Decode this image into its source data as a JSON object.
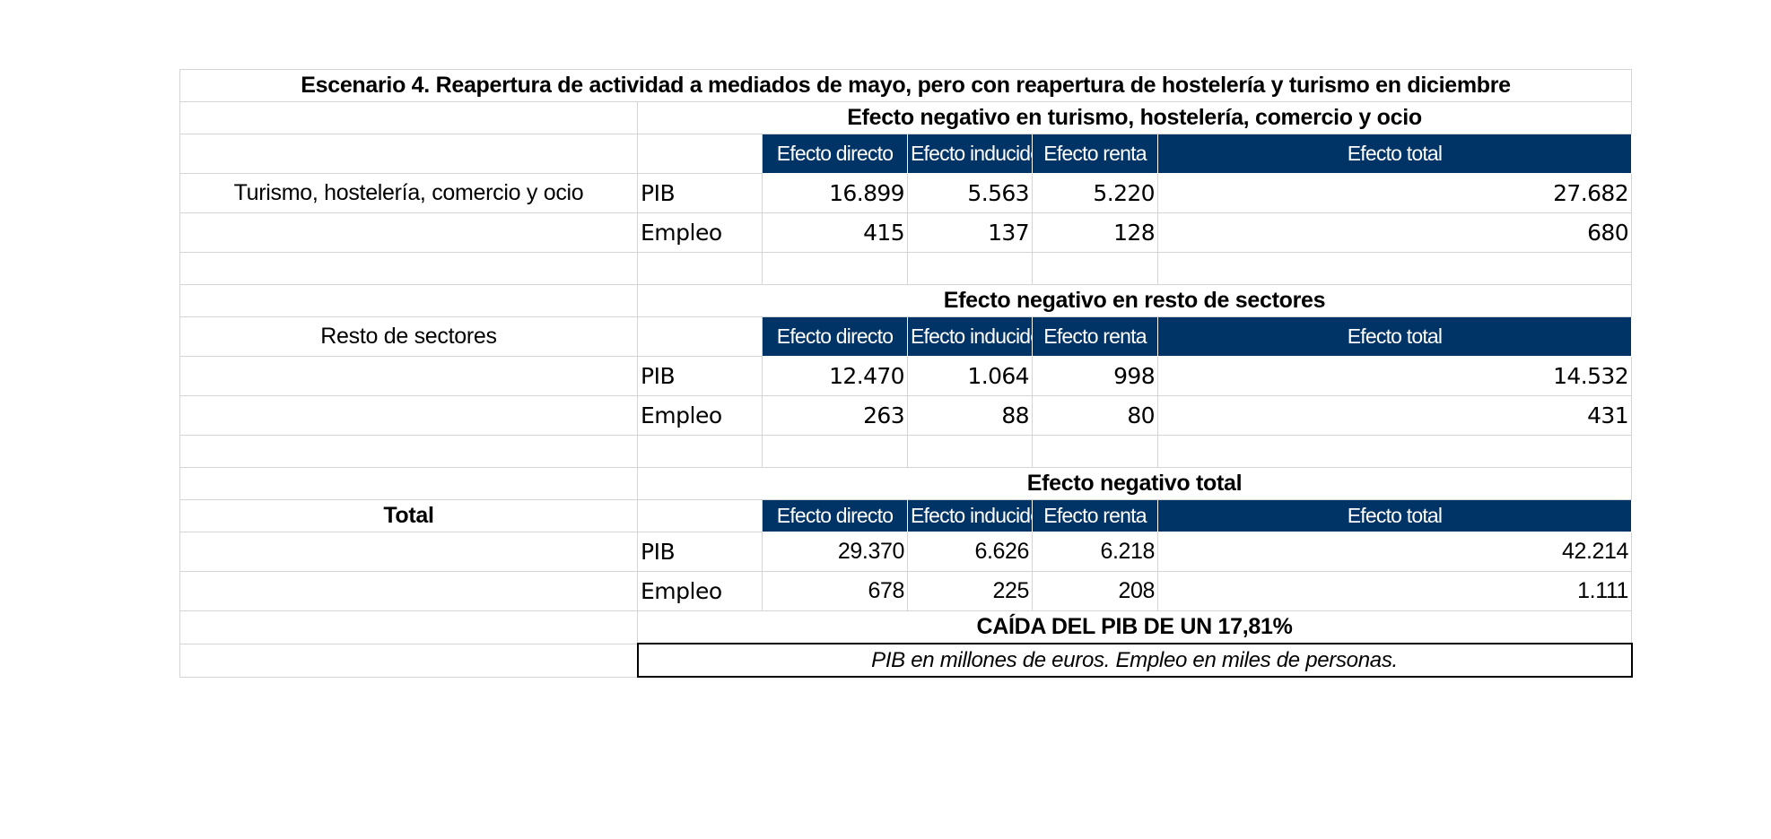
{
  "title": "Escenario 4. Reapertura de actividad a mediados de mayo, pero con reapertura de hostelería y turismo en diciembre",
  "column_headers": [
    "Efecto directo",
    "Efecto inducido",
    "Efecto renta",
    "Efecto total"
  ],
  "colors": {
    "header_bg": "#003366",
    "header_text": "#ffffff",
    "grid": "#d4d4d4"
  },
  "sections": [
    {
      "label": "Turismo, hostelería, comercio y ocio",
      "heading": "Efecto negativo en turismo, hostelería, comercio y ocio",
      "rows": [
        {
          "metric": "PIB",
          "values": [
            "16.899",
            "5.563",
            "5.220",
            "27.682"
          ]
        },
        {
          "metric": "Empleo",
          "values": [
            "415",
            "137",
            "128",
            "680"
          ]
        }
      ]
    },
    {
      "label": "Resto de sectores",
      "heading": "Efecto negativo en resto de sectores",
      "rows": [
        {
          "metric": "PIB",
          "values": [
            "12.470",
            "1.064",
            "998",
            "14.532"
          ]
        },
        {
          "metric": "Empleo",
          "values": [
            "263",
            "88",
            "80",
            "431"
          ]
        }
      ]
    },
    {
      "label": "Total",
      "heading": "Efecto negativo total",
      "rows": [
        {
          "metric": "PIB",
          "values": [
            "29.370",
            "6.626",
            "6.218",
            "42.214"
          ]
        },
        {
          "metric": "Empleo",
          "values": [
            "678",
            "225",
            "208",
            "1.111"
          ]
        }
      ]
    }
  ],
  "summary": "CAÍDA DEL PIB DE UN 17,81%",
  "footnote": "PIB en millones de euros. Empleo en miles de personas."
}
